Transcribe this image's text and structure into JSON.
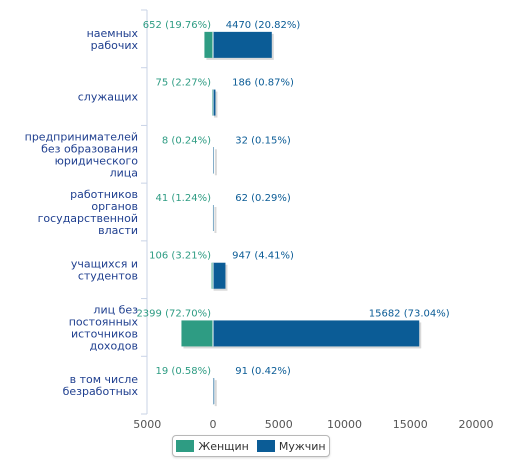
{
  "chart_data": {
    "type": "bar",
    "orientation": "horizontal",
    "stacking": "diverging",
    "categories": [
      [
        "наемных",
        "рабочих"
      ],
      [
        "служащих"
      ],
      [
        "предпринимателей",
        "без образования",
        "юридического",
        "лица"
      ],
      [
        "работников",
        "органов",
        "государственной",
        "власти"
      ],
      [
        "учащихся и",
        "студентов"
      ],
      [
        "лиц без",
        "постоянных",
        "источников",
        "доходов"
      ],
      [
        "в том числе",
        "безработных"
      ]
    ],
    "series": [
      {
        "name": "Женщин",
        "color": "#2e9c83",
        "values": [
          652,
          75,
          8,
          41,
          106,
          2399,
          19
        ],
        "labels": [
          "652 (19.76%)",
          "75 (2.27%)",
          "8 (0.24%)",
          "41 (1.24%)",
          "106 (3.21%)",
          "2399 (72.70%)",
          "19 (0.58%)"
        ]
      },
      {
        "name": "Мужчин",
        "color": "#0b5c96",
        "values": [
          4470,
          186,
          32,
          62,
          947,
          15682,
          91
        ],
        "labels": [
          "4470 (20.82%)",
          "186 (0.87%)",
          "32 (0.15%)",
          "62 (0.29%)",
          "947 (4.41%)",
          "15682 (73.04%)",
          "91 (0.42%)"
        ]
      }
    ],
    "xaxis": {
      "ticks": [
        -5000,
        0,
        5000,
        10000,
        15000,
        20000
      ],
      "tick_labels": [
        "5000",
        "0",
        "5000",
        "10000",
        "15000",
        "20000"
      ],
      "range": [
        -5000,
        20000
      ]
    },
    "legend": {
      "position": "bottom-center"
    }
  }
}
